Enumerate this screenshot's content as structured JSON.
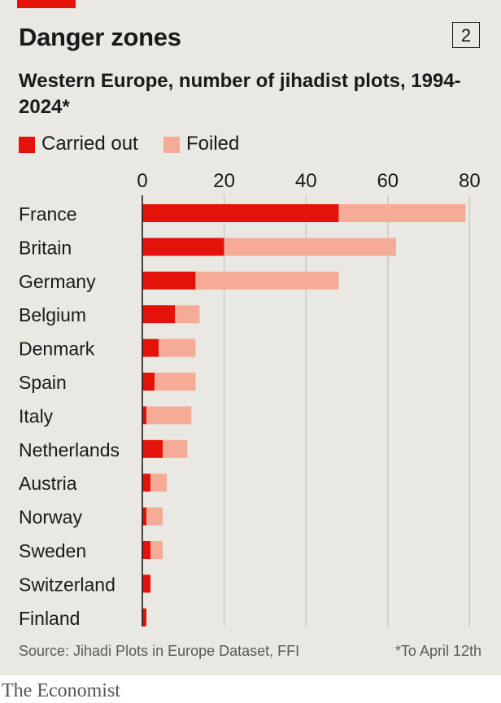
{
  "chart_number": "2",
  "title": "Danger zones",
  "subtitle": "Western Europe, number of jihadist plots, 1994-2024*",
  "legend": [
    {
      "label": "Carried out",
      "color": "#e3120b"
    },
    {
      "label": "Foiled",
      "color": "#f6ab96"
    }
  ],
  "source": "Source: Jihadi Plots in Europe Dataset, FFI",
  "footnote": "*To April 12th",
  "brand": "The Economist",
  "chart_data": {
    "type": "bar",
    "orientation": "horizontal",
    "stacked": true,
    "title": "Danger zones",
    "subtitle": "Western Europe, number of jihadist plots, 1994-2024*",
    "categories": [
      "France",
      "Britain",
      "Germany",
      "Belgium",
      "Denmark",
      "Spain",
      "Italy",
      "Netherlands",
      "Austria",
      "Norway",
      "Sweden",
      "Switzerland",
      "Finland"
    ],
    "series": [
      {
        "name": "Carried out",
        "color": "#e3120b",
        "values": [
          48,
          20,
          13,
          8,
          4,
          3,
          1,
          5,
          2,
          1,
          2,
          2,
          1
        ]
      },
      {
        "name": "Foiled",
        "color": "#f6ab96",
        "values": [
          31,
          42,
          35,
          6,
          9,
          10,
          11,
          6,
          4,
          4,
          3,
          0,
          0
        ]
      }
    ],
    "xticks": [
      0,
      20,
      40,
      60,
      80
    ],
    "xlim": [
      0,
      80
    ],
    "grid": true,
    "xaxis_position": "top",
    "legend_position": "top-left"
  }
}
